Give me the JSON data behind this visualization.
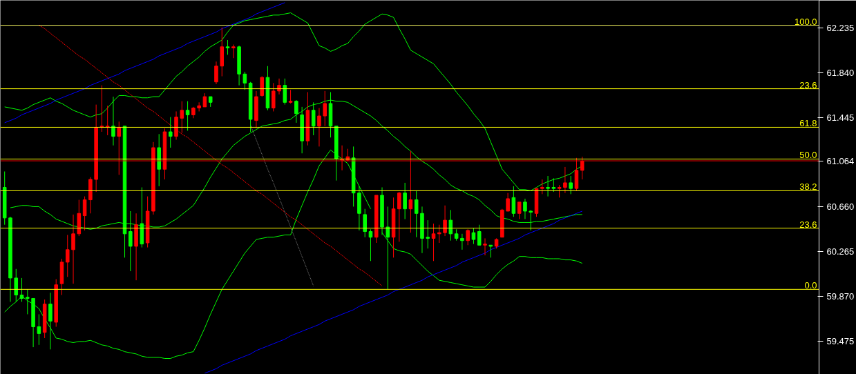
{
  "chart_data": {
    "type": "candlestick",
    "categories": [
      null,
      null,
      null,
      null,
      null,
      null,
      null,
      null,
      null,
      null,
      null,
      null,
      null,
      null,
      null,
      null,
      null,
      null,
      null,
      null,
      null,
      null,
      null,
      null,
      null,
      null,
      null,
      null,
      null,
      null,
      null,
      null,
      null,
      null,
      null,
      null,
      null,
      null,
      null,
      null,
      null,
      null,
      null,
      null,
      null,
      null,
      null,
      null,
      null,
      null,
      null,
      null,
      null,
      null,
      null,
      null,
      null,
      null,
      null,
      null,
      null,
      null,
      null,
      null,
      null,
      null,
      null,
      null,
      null,
      null,
      null,
      null,
      null,
      null,
      null,
      null,
      null,
      null,
      null,
      null,
      null,
      null,
      null,
      null,
      null,
      null,
      null,
      null,
      null,
      null,
      null,
      null,
      null,
      null,
      null,
      null,
      null,
      null,
      null,
      null,
      null,
      null
    ],
    "ohlc": [
      [
        60.83,
        60.97,
        60.5,
        60.56
      ],
      [
        60.56,
        60.57,
        59.82,
        60.03
      ],
      [
        60.03,
        60.11,
        59.82,
        59.88
      ],
      [
        59.88,
        60.03,
        59.82,
        59.85
      ],
      [
        59.86,
        59.93,
        59.71,
        59.85
      ],
      [
        59.85,
        59.85,
        59.42,
        59.6
      ],
      [
        59.6,
        59.71,
        59.44,
        59.54
      ],
      [
        59.55,
        59.84,
        59.5,
        59.8
      ],
      [
        59.8,
        59.9,
        59.4,
        59.65
      ],
      [
        59.64,
        60.02,
        59.6,
        59.97
      ],
      [
        59.98,
        60.2,
        59.88,
        60.17
      ],
      [
        60.17,
        60.41,
        60.04,
        60.28
      ],
      [
        60.28,
        60.59,
        59.98,
        60.42
      ],
      [
        60.42,
        60.72,
        60.4,
        60.6
      ],
      [
        60.58,
        60.75,
        60.45,
        60.72
      ],
      [
        60.72,
        60.92,
        60.6,
        60.9
      ],
      [
        60.9,
        61.56,
        60.79,
        61.36
      ],
      [
        61.36,
        61.73,
        61.32,
        61.37
      ],
      [
        61.36,
        61.55,
        61.29,
        61.37
      ],
      [
        61.37,
        61.63,
        61.2,
        61.28
      ],
      [
        61.28,
        61.41,
        60.94,
        61.36
      ],
      [
        61.37,
        61.37,
        60.21,
        60.42
      ],
      [
        60.44,
        60.62,
        60.09,
        60.31
      ],
      [
        60.31,
        60.6,
        60.01,
        60.5
      ],
      [
        60.51,
        60.83,
        60.3,
        60.33
      ],
      [
        60.34,
        60.75,
        60.3,
        60.62
      ],
      [
        60.62,
        61.23,
        60.59,
        61.18
      ],
      [
        61.18,
        61.3,
        60.84,
        60.99
      ],
      [
        60.99,
        61.35,
        60.9,
        61.32
      ],
      [
        61.32,
        61.45,
        61.18,
        61.28
      ],
      [
        61.28,
        61.5,
        61.25,
        61.45
      ],
      [
        61.44,
        61.59,
        61.31,
        61.51
      ],
      [
        61.51,
        61.59,
        61.33,
        61.47
      ],
      [
        61.47,
        61.54,
        61.44,
        61.53
      ],
      [
        61.53,
        61.58,
        61.5,
        61.55
      ],
      [
        61.54,
        61.66,
        61.54,
        61.63
      ],
      [
        61.63,
        61.63,
        61.54,
        61.58
      ],
      [
        61.76,
        61.94,
        61.74,
        61.9
      ],
      [
        61.9,
        62.24,
        61.81,
        62.07
      ],
      [
        62.07,
        62.13,
        62.0,
        62.06
      ],
      [
        62.06,
        62.09,
        61.97,
        62.07
      ],
      [
        62.07,
        62.08,
        61.73,
        61.83
      ],
      [
        61.83,
        61.85,
        61.69,
        61.75
      ],
      [
        61.75,
        61.76,
        61.32,
        61.43
      ],
      [
        61.42,
        61.68,
        61.35,
        61.63
      ],
      [
        61.64,
        61.81,
        61.63,
        61.8
      ],
      [
        61.8,
        61.9,
        61.51,
        61.53
      ],
      [
        61.53,
        61.75,
        61.5,
        61.68
      ],
      [
        61.68,
        61.79,
        61.65,
        61.73
      ],
      [
        61.73,
        61.79,
        61.56,
        61.58
      ],
      [
        61.58,
        61.69,
        61.57,
        61.59
      ],
      [
        61.59,
        61.6,
        61.4,
        61.48
      ],
      [
        61.47,
        61.54,
        61.13,
        61.24
      ],
      [
        61.24,
        61.67,
        61.2,
        61.51
      ],
      [
        61.51,
        61.58,
        61.29,
        61.37
      ],
      [
        61.37,
        61.53,
        61.19,
        61.46
      ],
      [
        61.46,
        61.68,
        61.37,
        61.57
      ],
      [
        61.57,
        61.67,
        61.27,
        61.37
      ],
      [
        61.37,
        61.37,
        60.89,
        61.08
      ],
      [
        61.07,
        61.2,
        60.98,
        61.08
      ],
      [
        61.07,
        61.17,
        61.06,
        61.1
      ],
      [
        61.09,
        61.19,
        60.66,
        60.78
      ],
      [
        60.78,
        60.84,
        60.45,
        60.6
      ],
      [
        60.59,
        60.64,
        60.39,
        60.44
      ],
      [
        60.44,
        60.46,
        60.18,
        60.39
      ],
      [
        60.39,
        60.76,
        60.34,
        60.76
      ],
      [
        60.76,
        60.83,
        60.41,
        60.48
      ],
      [
        60.48,
        60.66,
        59.93,
        60.39
      ],
      [
        60.39,
        60.74,
        60.21,
        60.64
      ],
      [
        60.64,
        60.79,
        60.35,
        60.78
      ],
      [
        60.78,
        60.87,
        60.55,
        60.64
      ],
      [
        60.64,
        61.15,
        60.43,
        60.72
      ],
      [
        60.72,
        60.8,
        60.39,
        60.6
      ],
      [
        60.6,
        60.66,
        60.25,
        60.38
      ],
      [
        60.39,
        60.54,
        60.29,
        60.38
      ],
      [
        60.38,
        60.51,
        60.18,
        60.42
      ],
      [
        60.42,
        60.5,
        60.34,
        60.43
      ],
      [
        60.43,
        60.67,
        60.4,
        60.54
      ],
      [
        60.54,
        60.63,
        60.36,
        60.42
      ],
      [
        60.42,
        60.46,
        60.36,
        60.38
      ],
      [
        60.38,
        60.42,
        60.28,
        60.36
      ],
      [
        60.36,
        60.46,
        60.32,
        60.45
      ],
      [
        60.43,
        60.47,
        60.33,
        60.37
      ],
      [
        60.44,
        60.5,
        60.32,
        60.32
      ],
      [
        60.32,
        60.38,
        60.23,
        60.33
      ],
      [
        60.32,
        60.32,
        60.21,
        60.31
      ],
      [
        60.31,
        60.38,
        60.29,
        60.37
      ],
      [
        60.39,
        60.64,
        60.39,
        60.63
      ],
      [
        60.62,
        60.78,
        60.62,
        60.73
      ],
      [
        60.74,
        60.84,
        60.57,
        60.6
      ],
      [
        60.6,
        60.7,
        60.55,
        60.7
      ],
      [
        60.7,
        60.73,
        60.55,
        60.62
      ],
      [
        60.62,
        60.63,
        60.45,
        60.61
      ],
      [
        60.6,
        60.82,
        60.57,
        60.82
      ],
      [
        60.82,
        60.9,
        60.77,
        60.83
      ],
      [
        60.83,
        60.93,
        60.75,
        60.82
      ],
      [
        60.83,
        60.91,
        60.79,
        60.82
      ],
      [
        60.82,
        60.85,
        60.74,
        60.83
      ],
      [
        60.83,
        61.01,
        60.78,
        60.87
      ],
      [
        60.87,
        60.93,
        60.77,
        60.82
      ],
      [
        60.82,
        61.09,
        60.8,
        60.98
      ],
      [
        60.98,
        61.1,
        60.9,
        61.06
      ]
    ],
    "colors": [
      "#00ff00",
      "#00ff00",
      "#00ff00",
      "#00ff00",
      "#00ff00",
      "#00ff00",
      "#00ff00",
      "#ff0000",
      "#00ff00",
      "#ff0000",
      "#ff0000",
      "#ff0000",
      "#ff0000",
      "#ff0000",
      "#ff0000",
      "#ff0000",
      "#ff0000",
      "#ff0000",
      "#ff0000",
      "#00ff00",
      "#ff0000",
      "#00ff00",
      "#00ff00",
      "#ff0000",
      "#00ff00",
      "#ff0000",
      "#ff0000",
      "#00ff00",
      "#ff0000",
      "#00ff00",
      "#ff0000",
      "#ff0000",
      "#00ff00",
      "#ff0000",
      "#ff0000",
      "#ff0000",
      "#00ff00",
      "#ff0000",
      "#ff0000",
      "#00ff00",
      "#ff0000",
      "#00ff00",
      "#00ff00",
      "#00ff00",
      "#ff0000",
      "#ff0000",
      "#00ff00",
      "#ff0000",
      "#ff0000",
      "#00ff00",
      "#ff0000",
      "#00ff00",
      "#00ff00",
      "#ff0000",
      "#00ff00",
      "#ff0000",
      "#ff0000",
      "#00ff00",
      "#00ff00",
      "#ff0000",
      "#ff0000",
      "#00ff00",
      "#00ff00",
      "#00ff00",
      "#00ff00",
      "#ff0000",
      "#00ff00",
      "#00ff00",
      "#ff0000",
      "#ff0000",
      "#00ff00",
      "#ff0000",
      "#00ff00",
      "#00ff00",
      "#00ff00",
      "#ff0000",
      "#ff0000",
      "#ff0000",
      "#00ff00",
      "#00ff00",
      "#00ff00",
      "#ff0000",
      "#00ff00",
      "#00ff00",
      "#ff0000",
      "#00ff00",
      "#ff0000",
      "#ff0000",
      "#ff0000",
      "#00ff00",
      "#ff0000",
      "#00ff00",
      "#00ff00",
      "#ff0000",
      "#ff0000",
      "#00ff00",
      "#00ff00",
      "#ff0000",
      "#ff0000",
      "#00ff00",
      "#ff0000",
      "#ff0000"
    ],
    "ylim": [
      59.18,
      62.48
    ],
    "yticks": [
      {
        "value": 62.235,
        "label": "62.235"
      },
      {
        "value": 61.84,
        "label": "61.840"
      },
      {
        "value": 61.445,
        "label": "61.445"
      },
      {
        "value": 61.064,
        "label": "61.064"
      },
      {
        "value": 60.66,
        "label": "60.660"
      },
      {
        "value": 60.265,
        "label": "60.265"
      },
      {
        "value": 59.87,
        "label": "59.870"
      },
      {
        "value": 59.475,
        "label": "59.475"
      }
    ],
    "tick_labels": "y",
    "series": [
      {
        "type": "line",
        "color": "#00ff00",
        "values": [
          61.54,
          61.53,
          61.52,
          61.51,
          61.53,
          61.56,
          61.58,
          61.6,
          61.62,
          61.59,
          61.57,
          61.54,
          61.51,
          61.49,
          61.47,
          61.45,
          61.47,
          61.48,
          61.53,
          61.59,
          61.64,
          61.64,
          61.63,
          61.63,
          61.62,
          61.62,
          61.63,
          61.63,
          61.69,
          61.75,
          61.81,
          61.85,
          61.9,
          61.94,
          61.98,
          62.03,
          62.07,
          62.1,
          62.13,
          62.2,
          62.26,
          62.28,
          62.3,
          62.31,
          62.32,
          62.33,
          62.34,
          62.35,
          62.35,
          62.36,
          62.37,
          62.34,
          62.31,
          62.28,
          62.18,
          62.08,
          62.06,
          62.03,
          62.05,
          62.08,
          62.1,
          62.16,
          62.21,
          62.27,
          62.3,
          62.33,
          62.36,
          62.35,
          62.33,
          62.23,
          62.14,
          62.04,
          62.01,
          61.98,
          61.95,
          61.92,
          61.86,
          61.8,
          61.74,
          61.67,
          61.61,
          61.55,
          61.48,
          61.42,
          61.35,
          61.23,
          61.11,
          60.99,
          60.93,
          60.87,
          60.81,
          60.81,
          60.8,
          60.83,
          60.86,
          60.88,
          60.9,
          60.91,
          60.93,
          60.95,
          60.99,
          61.02
        ]
      },
      {
        "type": "line",
        "color": "#00ff00",
        "values": [
          null,
          60.65,
          60.66,
          60.67,
          60.67,
          60.66,
          60.66,
          60.62,
          60.59,
          60.55,
          60.53,
          60.51,
          60.49,
          60.48,
          60.47,
          60.46,
          60.47,
          60.49,
          60.5,
          60.51,
          60.52,
          60.51,
          60.51,
          60.5,
          60.49,
          60.49,
          60.48,
          60.48,
          60.49,
          60.52,
          60.55,
          60.59,
          60.63,
          60.67,
          60.75,
          60.83,
          60.92,
          61.0,
          61.08,
          61.14,
          61.2,
          61.24,
          61.28,
          61.31,
          61.34,
          61.37,
          61.38,
          61.39,
          61.4,
          61.42,
          61.43,
          61.47,
          61.5,
          61.54,
          61.56,
          61.57,
          61.59,
          61.6,
          61.59,
          61.59,
          61.58,
          61.55,
          61.52,
          61.49,
          61.46,
          61.42,
          61.37,
          61.33,
          61.28,
          61.24,
          61.19,
          61.15,
          61.1,
          61.06,
          61.03,
          60.99,
          60.94,
          60.9,
          60.85,
          60.82,
          60.8,
          60.77,
          60.75,
          60.72,
          60.67,
          60.63,
          60.58,
          60.56,
          60.55,
          60.53,
          60.52,
          60.52,
          60.52,
          60.53,
          60.53,
          60.54,
          60.55,
          60.56,
          60.57,
          60.58,
          60.59,
          60.59
        ]
      },
      {
        "type": "line",
        "color": "#00ff00",
        "values": [
          59.73,
          59.78,
          59.82,
          59.87,
          59.83,
          59.8,
          59.76,
          59.67,
          59.59,
          59.5,
          59.49,
          59.47,
          59.46,
          59.47,
          59.47,
          59.48,
          59.46,
          59.44,
          59.43,
          59.41,
          59.4,
          59.38,
          59.37,
          59.36,
          59.34,
          59.33,
          59.33,
          59.33,
          59.32,
          59.32,
          59.34,
          59.35,
          59.37,
          59.38,
          59.48,
          59.59,
          59.71,
          59.82,
          59.93,
          60.01,
          60.09,
          60.17,
          60.25,
          60.31,
          60.37,
          60.38,
          60.39,
          60.39,
          60.4,
          60.41,
          60.41,
          60.55,
          60.67,
          60.79,
          60.9,
          61.02,
          61.09,
          61.16,
          61.12,
          61.08,
          61.04,
          60.94,
          60.84,
          60.74,
          60.64,
          null,
          60.43,
          60.36,
          60.29,
          60.27,
          60.26,
          60.24,
          60.19,
          60.14,
          60.09,
          60.05,
          60.01,
          60.0,
          59.99,
          59.98,
          59.97,
          59.96,
          59.95,
          59.95,
          59.95,
          60.0,
          60.06,
          60.11,
          60.15,
          60.18,
          60.22,
          60.22,
          60.21,
          60.21,
          60.21,
          60.2,
          60.2,
          60.2,
          60.19,
          60.19,
          60.18,
          60.16
        ]
      },
      {
        "type": "line",
        "color": "#0000ff",
        "values": [
          61.4,
          61.42,
          61.44,
          61.47,
          61.49,
          61.51,
          61.53,
          61.55,
          61.57,
          61.6,
          61.62,
          61.64,
          61.66,
          61.68,
          61.7,
          61.73,
          61.75,
          61.77,
          61.79,
          61.81,
          61.83,
          61.86,
          61.88,
          61.9,
          61.92,
          61.94,
          61.96,
          61.99,
          62.01,
          62.03,
          62.05,
          62.07,
          62.1,
          62.12,
          62.14,
          62.16,
          62.18,
          62.2,
          62.23,
          62.25,
          62.27,
          62.29,
          62.31,
          62.33,
          62.36,
          62.38,
          62.4,
          62.42,
          62.44,
          62.46,
          null,
          null,
          null,
          null,
          null,
          null,
          null,
          null,
          null,
          null,
          null,
          null,
          null,
          null,
          null,
          null,
          null,
          null,
          null,
          null,
          null,
          null,
          null,
          null,
          null,
          null,
          null,
          null,
          null,
          null,
          null,
          null,
          null,
          null,
          null,
          null,
          null,
          null,
          null,
          null,
          null,
          null,
          null,
          null,
          null,
          null,
          null,
          null,
          null,
          null,
          null,
          null
        ]
      },
      {
        "type": "line",
        "color": "#0000ff",
        "values": [
          null,
          null,
          null,
          null,
          null,
          null,
          null,
          null,
          null,
          null,
          null,
          null,
          null,
          null,
          null,
          null,
          null,
          null,
          null,
          null,
          null,
          null,
          null,
          null,
          null,
          null,
          null,
          null,
          null,
          null,
          null,
          null,
          null,
          null,
          null,
          59.19,
          59.21,
          59.23,
          59.26,
          59.28,
          59.3,
          59.32,
          59.34,
          59.36,
          59.39,
          59.41,
          59.43,
          59.45,
          59.47,
          59.49,
          59.52,
          59.54,
          59.56,
          59.58,
          59.6,
          59.62,
          59.65,
          59.67,
          59.69,
          59.71,
          59.73,
          59.75,
          59.78,
          59.8,
          59.82,
          59.84,
          59.86,
          59.88,
          59.91,
          59.93,
          59.95,
          59.97,
          59.99,
          60.01,
          60.04,
          60.06,
          60.08,
          60.1,
          60.12,
          60.14,
          60.17,
          60.19,
          60.21,
          60.23,
          60.25,
          60.28,
          60.3,
          60.32,
          60.34,
          60.36,
          60.38,
          60.41,
          60.43,
          60.45,
          60.47,
          60.49,
          60.51,
          60.54,
          60.56,
          60.58,
          60.6,
          60.62
        ]
      },
      {
        "type": "line",
        "color": "#ff0000",
        "line_style": "dashed",
        "values": [
          null,
          null,
          null,
          null,
          null,
          null,
          62.26,
          62.23,
          62.19,
          62.15,
          62.11,
          62.07,
          62.03,
          61.99,
          61.96,
          61.92,
          61.88,
          61.84,
          61.8,
          61.76,
          61.73,
          61.69,
          61.65,
          61.61,
          61.57,
          61.53,
          61.5,
          61.46,
          61.42,
          61.38,
          61.34,
          61.3,
          61.27,
          61.23,
          61.19,
          61.15,
          61.11,
          61.07,
          61.03,
          61.0,
          60.96,
          60.92,
          60.88,
          60.84,
          60.8,
          60.77,
          60.73,
          60.69,
          60.65,
          60.61,
          60.57,
          60.54,
          60.5,
          60.46,
          60.42,
          60.38,
          60.34,
          60.31,
          60.27,
          60.23,
          60.19,
          60.15,
          60.11,
          60.08,
          60.04,
          60.0,
          59.96,
          null,
          null,
          null,
          null,
          null,
          null,
          null,
          null,
          null,
          null,
          null,
          null,
          null,
          null,
          null,
          null,
          null,
          null,
          null,
          null,
          null,
          null,
          null,
          null,
          null,
          null,
          null,
          null,
          null,
          null,
          null,
          null,
          null,
          null,
          null
        ]
      },
      {
        "type": "line",
        "color": "#808080",
        "line_style": "dotted",
        "values": [
          null,
          null,
          null,
          null,
          null,
          null,
          null,
          null,
          null,
          null,
          null,
          null,
          null,
          null,
          null,
          null,
          null,
          null,
          null,
          null,
          null,
          null,
          null,
          null,
          null,
          null,
          null,
          null,
          null,
          null,
          null,
          null,
          null,
          null,
          null,
          null,
          null,
          null,
          null,
          null,
          null,
          null,
          null,
          61.38,
          61.25,
          61.12,
          60.99,
          60.87,
          60.74,
          60.61,
          60.48,
          60.35,
          60.22,
          60.09,
          59.96,
          null,
          null,
          null,
          null,
          null,
          null,
          null,
          null,
          null,
          null,
          null,
          null,
          null,
          null,
          null,
          null,
          null,
          null,
          null,
          null,
          null,
          null,
          null,
          null,
          null,
          null,
          null,
          null,
          null,
          null,
          null,
          null,
          null,
          null,
          null,
          null,
          null,
          null,
          null,
          null,
          null,
          null,
          null,
          null,
          null,
          null,
          null
        ]
      }
    ],
    "ref_lines": [
      {
        "axis": "y",
        "value": 62.26,
        "color": "#ffff66"
      },
      {
        "axis": "y",
        "value": 61.7,
        "color": "#ffff00"
      },
      {
        "axis": "y",
        "value": 61.36,
        "color": "#ffff00"
      },
      {
        "axis": "y",
        "value": 61.08,
        "color": "#ffff00"
      },
      {
        "axis": "y",
        "value": 61.064,
        "color": "#ff0000"
      },
      {
        "axis": "y",
        "value": 60.8,
        "color": "#ffff00"
      },
      {
        "axis": "y",
        "value": 60.47,
        "color": "#ffff00"
      },
      {
        "axis": "y",
        "value": 59.93,
        "color": "#ffff00"
      }
    ],
    "annotations": [
      {
        "text": "100.0",
        "y": 62.26
      },
      {
        "text": "23.6",
        "y": 61.7
      },
      {
        "text": "61.8",
        "y": 61.36
      },
      {
        "text": "50.0",
        "y": 61.08
      },
      {
        "text": "38.2",
        "y": 60.8
      },
      {
        "text": "23.6",
        "y": 60.47
      },
      {
        "text": "0.0",
        "y": 59.93
      }
    ]
  }
}
